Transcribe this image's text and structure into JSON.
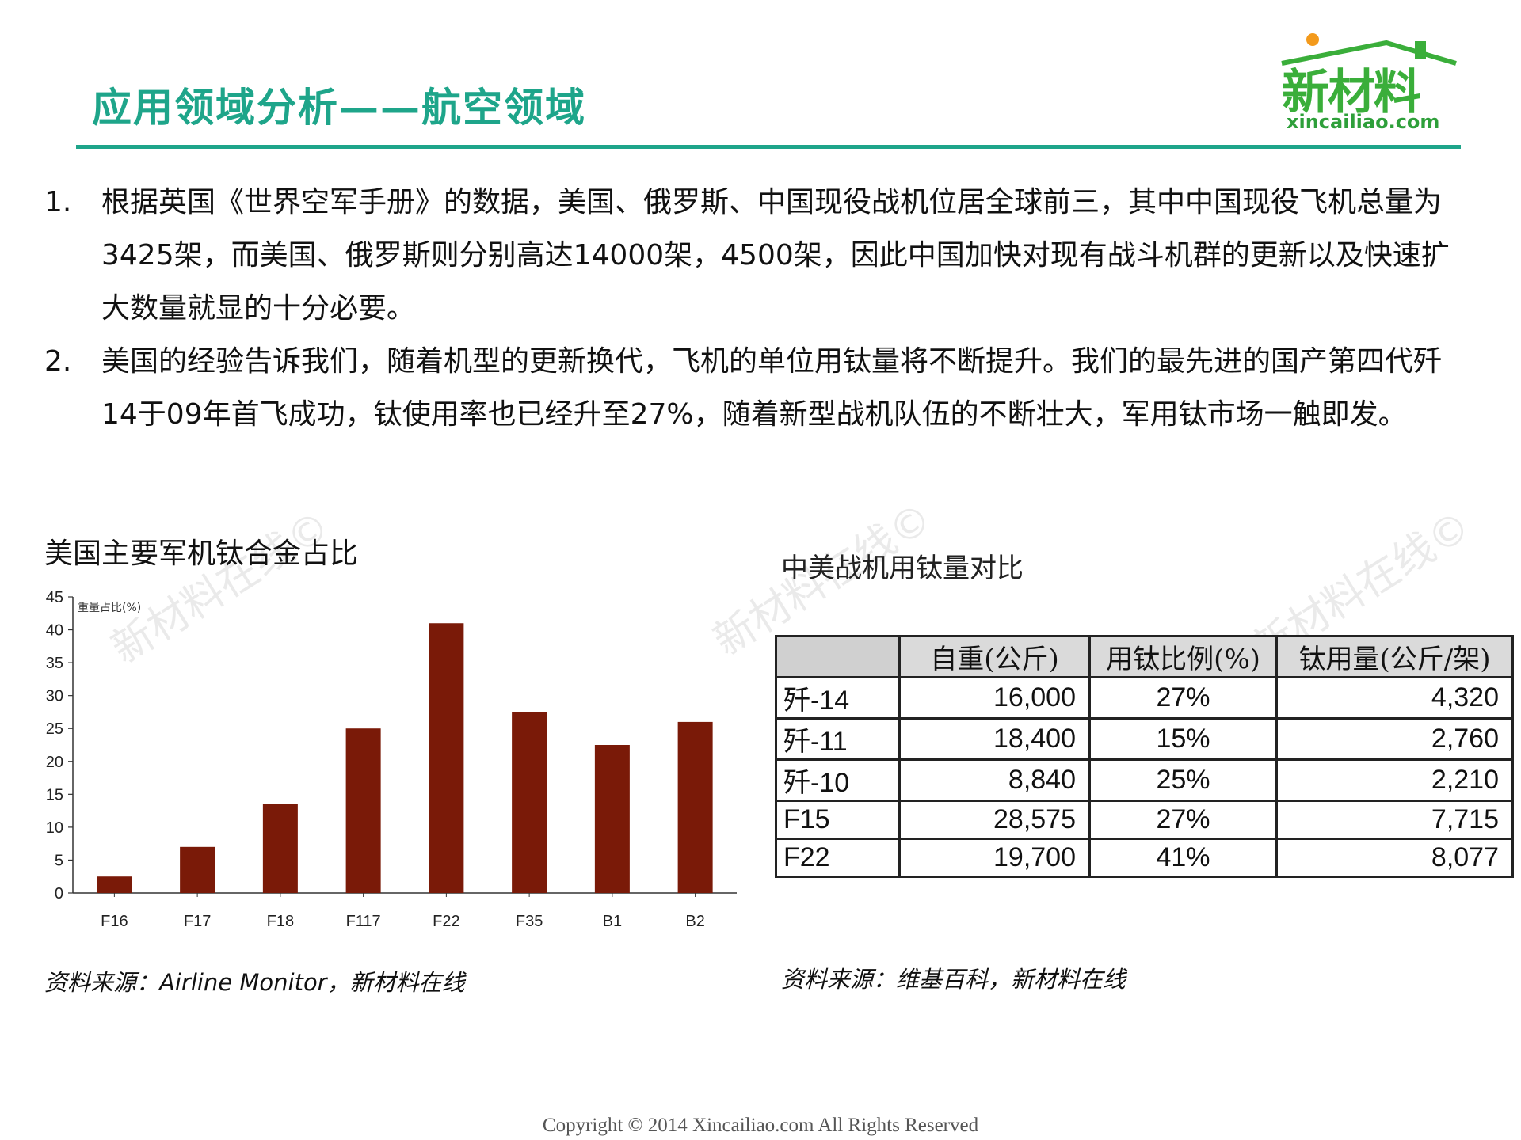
{
  "header": {
    "title": "应用领域分析——航空领域",
    "logo_text": "新材料",
    "logo_url": "xincailiao.com"
  },
  "points": [
    {
      "num": "1.",
      "text": "根据英国《世界空军手册》的数据，美国、俄罗斯、中国现役战机位居全球前三，其中中国现役飞机总量为3425架，而美国、俄罗斯则分别高达14000架，4500架，因此中国加快对现有战斗机群的更新以及快速扩大数量就显的十分必要。"
    },
    {
      "num": "2.",
      "text": "美国的经验告诉我们，随着机型的更新换代，飞机的单位用钛量将不断提升。我们的最先进的国产第四代歼14于09年首飞成功，钛使用率也已经升至27%，随着新型战机队伍的不断壮大，军用钛市场一触即发。"
    }
  ],
  "left_panel": {
    "title": "美国主要军机钛合金占比",
    "source": "资料来源：Airline Monitor，新材料在线"
  },
  "chart_data": {
    "type": "bar",
    "title": "美国主要军机钛合金占比",
    "ylabel": "重量占比(%)",
    "xlabel": "",
    "categories": [
      "F16",
      "F17",
      "F18",
      "F117",
      "F22",
      "F35",
      "B1",
      "B2"
    ],
    "values": [
      2.5,
      7,
      13.5,
      25,
      41,
      27.5,
      22.5,
      26
    ],
    "ylim": [
      0,
      45
    ],
    "yticks": [
      0,
      5,
      10,
      15,
      20,
      25,
      30,
      35,
      40,
      45
    ],
    "bar_color": "#7a1a08",
    "grid": false
  },
  "right_panel": {
    "title": "中美战机用钛量对比",
    "source": "资料来源：维基百科，新材料在线",
    "table": {
      "headers": [
        "",
        "自重(公斤)",
        "用钛比例(%)",
        "钛用量(公斤/架)"
      ],
      "rows": [
        [
          "歼-14",
          "16,000",
          "27%",
          "4,320"
        ],
        [
          "歼-11",
          "18,400",
          "15%",
          "2,760"
        ],
        [
          "歼-10",
          "8,840",
          "25%",
          "2,210"
        ],
        [
          "F15",
          "28,575",
          "27%",
          "7,715"
        ],
        [
          "F22",
          "19,700",
          "41%",
          "8,077"
        ]
      ]
    }
  },
  "watermark": "新材料在线©",
  "copyright": "Copyright © 2014   Xincailiao.com   All Rights Reserved",
  "colors": {
    "accent": "#1ea58a",
    "logo_green": "#3aae3a",
    "bar": "#7a1a08"
  }
}
